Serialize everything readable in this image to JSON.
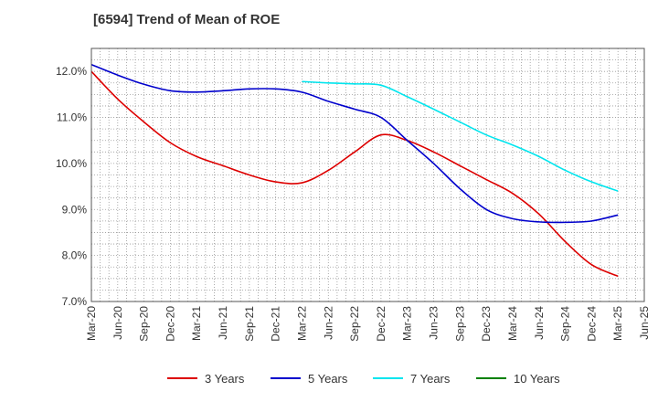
{
  "chart_data": {
    "type": "line",
    "title": "[6594]  Trend of Mean of ROE",
    "xlabel": "",
    "ylabel": "",
    "ylim": [
      7.0,
      12.5
    ],
    "yticks": [
      7.0,
      8.0,
      9.0,
      10.0,
      11.0,
      12.0
    ],
    "ytick_labels": [
      "7.0%",
      "8.0%",
      "9.0%",
      "10.0%",
      "11.0%",
      "12.0%"
    ],
    "categories": [
      "Mar-20",
      "Jun-20",
      "Sep-20",
      "Dec-20",
      "Mar-21",
      "Jun-21",
      "Sep-21",
      "Dec-21",
      "Mar-22",
      "Jun-22",
      "Sep-22",
      "Dec-22",
      "Mar-23",
      "Jun-23",
      "Sep-23",
      "Dec-23",
      "Mar-24",
      "Jun-24",
      "Sep-24",
      "Dec-24",
      "Mar-25",
      "Jun-25"
    ],
    "grid": true,
    "legend_position": "bottom",
    "series": [
      {
        "name": "3 Years",
        "color": "#dd0000",
        "values": [
          12.0,
          11.4,
          10.9,
          10.45,
          10.15,
          9.95,
          9.75,
          9.6,
          9.58,
          9.85,
          10.25,
          10.62,
          10.5,
          10.25,
          9.95,
          9.65,
          9.35,
          8.9,
          8.3,
          7.8,
          7.55,
          null
        ]
      },
      {
        "name": "5 Years",
        "color": "#0000cc",
        "values": [
          12.15,
          11.92,
          11.72,
          11.58,
          11.55,
          11.58,
          11.62,
          11.62,
          11.55,
          11.35,
          11.18,
          11.0,
          10.5,
          10.0,
          9.45,
          9.0,
          8.8,
          8.73,
          8.72,
          8.75,
          8.88,
          null
        ]
      },
      {
        "name": "7 Years",
        "color": "#00e5ee",
        "values": [
          null,
          null,
          null,
          null,
          null,
          null,
          null,
          null,
          11.78,
          11.75,
          11.73,
          11.7,
          11.45,
          11.18,
          10.9,
          10.62,
          10.4,
          10.15,
          9.85,
          9.6,
          9.4,
          null
        ]
      },
      {
        "name": "10 Years",
        "color": "#008000",
        "values": [
          null,
          null,
          null,
          null,
          null,
          null,
          null,
          null,
          null,
          null,
          null,
          null,
          null,
          null,
          null,
          null,
          null,
          null,
          null,
          null,
          null,
          null
        ]
      }
    ]
  }
}
